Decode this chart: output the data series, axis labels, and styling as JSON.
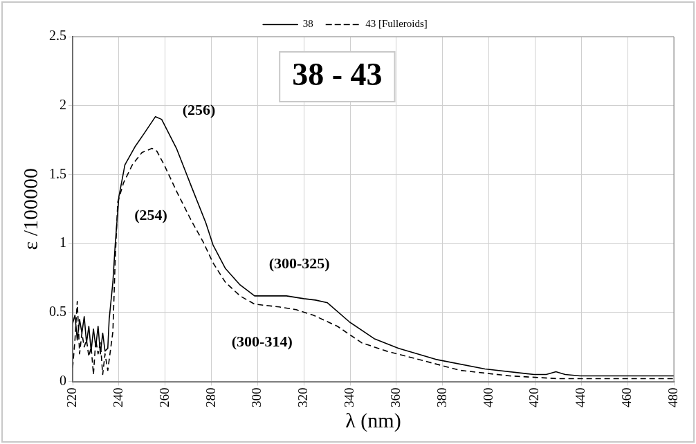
{
  "chart_data": {
    "type": "line",
    "xlabel": "λ (nm)",
    "ylabel": "ε /100000",
    "xlim": [
      220,
      480
    ],
    "xticks": [
      220,
      240,
      260,
      280,
      300,
      320,
      340,
      360,
      380,
      400,
      420,
      440,
      460,
      480
    ],
    "ylim": [
      0,
      2.5
    ],
    "yticks": [
      0,
      0.5,
      1,
      1.5,
      2,
      2.5
    ],
    "grid": true,
    "legend": "top",
    "marker": "none",
    "series": [
      {
        "name": "38",
        "color": "#000000",
        "line_style": "solid",
        "x": [
          220,
          221,
          222,
          223,
          224,
          225,
          226,
          227,
          228,
          229,
          230,
          231,
          232,
          233,
          234,
          235.2,
          235.8,
          237.4,
          238.4,
          240,
          242.6,
          246.9,
          251,
          255.8,
          258.5,
          264.9,
          271.2,
          277.6,
          280.7,
          286,
          292.4,
          298.7,
          305,
          312.5,
          320,
          325,
          330.2,
          339.8,
          350.4,
          361,
          377,
          398.3,
          419.5,
          424.8,
          429,
          433,
          439.4,
          480
        ],
        "values": [
          0.42,
          0.48,
          0.3,
          0.45,
          0.35,
          0.47,
          0.28,
          0.4,
          0.22,
          0.38,
          0.25,
          0.4,
          0.2,
          0.35,
          0.22,
          0.24,
          0.45,
          0.72,
          0.99,
          1.34,
          1.57,
          1.7,
          1.8,
          1.92,
          1.9,
          1.69,
          1.42,
          1.15,
          0.99,
          0.82,
          0.7,
          0.62,
          0.62,
          0.62,
          0.6,
          0.59,
          0.57,
          0.43,
          0.31,
          0.24,
          0.16,
          0.09,
          0.05,
          0.05,
          0.07,
          0.05,
          0.04,
          0.04
        ]
      },
      {
        "name": "43 [Fulleroids]",
        "color": "#000000",
        "line_style": "dashed",
        "x": [
          220,
          221,
          222,
          223,
          224,
          225,
          226,
          227,
          228,
          229,
          230,
          231,
          232,
          233,
          234,
          235.2,
          237.4,
          238.4,
          239.5,
          242,
          245.8,
          250,
          254.3,
          256.4,
          259.6,
          264.9,
          271.2,
          276.5,
          280.7,
          286,
          292.4,
          298.7,
          309.3,
          316.7,
          324.1,
          334.5,
          345,
          355.7,
          371.7,
          387.7,
          409,
          430,
          480
        ],
        "values": [
          0.1,
          0.3,
          0.58,
          0.2,
          0.35,
          0.25,
          0.3,
          0.18,
          0.25,
          0.05,
          0.3,
          0.2,
          0.28,
          0.05,
          0.2,
          0.08,
          0.36,
          0.88,
          1.3,
          1.44,
          1.57,
          1.66,
          1.69,
          1.67,
          1.57,
          1.38,
          1.17,
          1.01,
          0.86,
          0.72,
          0.62,
          0.56,
          0.54,
          0.52,
          0.48,
          0.4,
          0.28,
          0.22,
          0.15,
          0.08,
          0.04,
          0.02,
          0.02
        ]
      }
    ],
    "annotations": [
      "38 - 43",
      "(256)",
      "(254)",
      "(300-325)",
      "(300-314)"
    ]
  }
}
